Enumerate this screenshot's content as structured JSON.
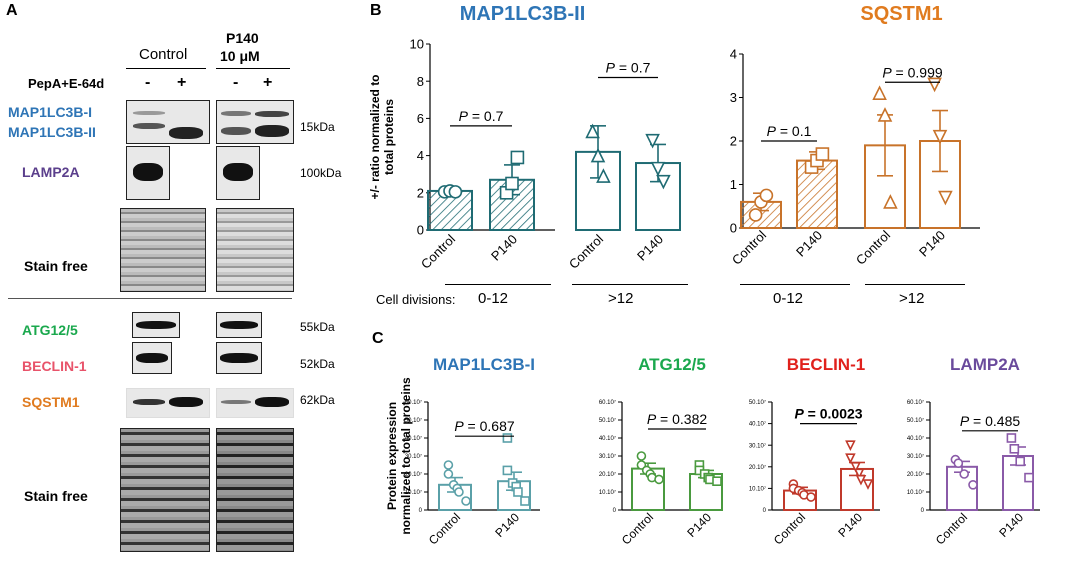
{
  "panel_a": {
    "letter": "A",
    "group_control": "Control",
    "group_p140_line1": "P140",
    "group_p140_line2": "10 μM",
    "treatment_label": "PepA+E-64d",
    "signs": [
      "-",
      "+",
      "-",
      "+"
    ],
    "rows": [
      {
        "protein": "MAP1LC3B-I",
        "color": "#2e75b6"
      },
      {
        "protein": "MAP1LC3B-II",
        "color": "#2e75b6"
      },
      {
        "protein": "LAMP2A",
        "color": "#5b3f8c"
      },
      {
        "protein": "Stain free",
        "color": "#000000"
      },
      {
        "protein": "ATG12/5",
        "color": "#1aa84d"
      },
      {
        "protein": "BECLIN-1",
        "color": "#e8536a"
      },
      {
        "protein": "SQSTM1",
        "color": "#e07b1f"
      },
      {
        "protein": "Stain free",
        "color": "#000000"
      }
    ],
    "kda": [
      "15kDa",
      "100kDa",
      "55kDa",
      "52kDa",
      "62kDa"
    ]
  },
  "panel_b_letter": "B",
  "panel_c_letter": "C",
  "cell_divisions_label": "Cell divisions:",
  "cell_div_groups": [
    "0-12",
    ">12",
    "0-12",
    ">12"
  ],
  "chart_data": [
    {
      "type": "bar",
      "panel": "B",
      "title": "MAP1LC3B-II",
      "color": "#2e75b6",
      "bar_color": "#1f6b73",
      "ylabel": "+/-  ratio normalized to total proteins",
      "ylim": [
        0,
        10
      ],
      "yticks": [
        "0",
        "2",
        "4",
        "6",
        "8",
        "10"
      ],
      "categories": [
        "Control",
        "P140",
        "Control",
        "P140"
      ],
      "values": [
        2.1,
        2.7,
        4.2,
        3.6
      ],
      "errors": [
        0.05,
        0.8,
        1.4,
        1.0
      ],
      "hatched": [
        true,
        true,
        false,
        false
      ],
      "points": [
        [
          2.05,
          2.1,
          2.05
        ],
        [
          2.0,
          2.5,
          3.9
        ],
        [
          5.3,
          4.0,
          2.9
        ],
        [
          4.8,
          3.3,
          2.6
        ]
      ],
      "markers": [
        "circle",
        "square",
        "triangle-up",
        "triangle-down"
      ],
      "pvalues": [
        {
          "label": "P = 0.7",
          "from": 0,
          "to": 1,
          "y": 5.6
        },
        {
          "label": "P = 0.7",
          "from": 2,
          "to": 3,
          "y": 8.2
        }
      ]
    },
    {
      "type": "bar",
      "panel": "B",
      "title": "SQSTM1",
      "color": "#e07b1f",
      "bar_color": "#c8732a",
      "ylabel": "",
      "ylim": [
        0,
        4
      ],
      "yticks": [
        "0",
        "1",
        "2",
        "3",
        "4"
      ],
      "categories": [
        "Control",
        "P140",
        "Control",
        "P140"
      ],
      "values": [
        0.6,
        1.55,
        1.9,
        2.0
      ],
      "errors": [
        0.2,
        0.2,
        0.7,
        0.7
      ],
      "hatched": [
        true,
        true,
        false,
        false
      ],
      "points": [
        [
          0.3,
          0.6,
          0.75
        ],
        [
          1.4,
          1.55,
          1.7
        ],
        [
          3.1,
          2.6,
          0.6
        ],
        [
          3.3,
          2.1,
          0.7
        ]
      ],
      "markers": [
        "circle",
        "square",
        "triangle-up",
        "triangle-down"
      ],
      "pvalues": [
        {
          "label": "P = 0.1",
          "from": 0,
          "to": 1,
          "y": 2.0
        },
        {
          "label": "P = 0.999",
          "from": 2,
          "to": 3,
          "y": 3.35
        }
      ]
    },
    {
      "type": "bar",
      "panel": "C",
      "title": "MAP1LC3B-I",
      "color": "#2e75b6",
      "bar_color": "#5aa0a8",
      "ylabel": "Protein  expression normalized to total proteins",
      "ylim": [
        0,
        60
      ],
      "yticks": [
        "0",
        "10.10⁷",
        "20.10⁷",
        "30.10⁷",
        "40.10⁷",
        "50.10⁷",
        "60.10⁷"
      ],
      "categories": [
        "Control",
        "P140"
      ],
      "values": [
        14,
        16
      ],
      "errors": [
        4,
        5
      ],
      "points": [
        [
          25,
          20,
          14,
          12,
          10,
          5
        ],
        [
          40,
          22,
          15,
          13,
          10,
          5
        ]
      ],
      "markers": [
        "circle",
        "square"
      ],
      "pvalues": [
        {
          "label": "P = 0.687",
          "from": 0,
          "to": 1,
          "y": 41,
          "bold": false
        }
      ]
    },
    {
      "type": "bar",
      "panel": "C",
      "title": "ATG12/5",
      "color": "#1aa84d",
      "bar_color": "#4a9a3f",
      "ylabel": "",
      "ylim": [
        0,
        60
      ],
      "yticks": [
        "0",
        "10.10⁷",
        "20.10⁷",
        "30.10⁷",
        "40.10⁷",
        "50.10⁷",
        "60.10⁷"
      ],
      "categories": [
        "Control",
        "P140"
      ],
      "values": [
        23,
        20
      ],
      "errors": [
        3,
        2
      ],
      "points": [
        [
          30,
          25,
          22,
          20,
          18,
          17
        ],
        [
          25,
          22,
          20,
          18,
          17,
          16
        ]
      ],
      "markers": [
        "circle",
        "square"
      ],
      "pvalues": [
        {
          "label": "P = 0.382",
          "from": 0,
          "to": 1,
          "y": 45,
          "bold": false
        }
      ]
    },
    {
      "type": "bar",
      "panel": "C",
      "title": "BECLIN-1",
      "color": "#e0211c",
      "bar_color": "#c0392b",
      "ylabel": "",
      "ylim": [
        0,
        50
      ],
      "yticks": [
        "0",
        "10.10⁷",
        "20.10⁷",
        "30.10⁷",
        "40.10⁷",
        "50.10⁷"
      ],
      "categories": [
        "Control",
        "P140"
      ],
      "values": [
        9,
        19
      ],
      "errors": [
        1.5,
        3
      ],
      "points": [
        [
          12,
          10,
          9,
          8,
          7,
          6
        ],
        [
          30,
          24,
          20,
          17,
          14,
          12
        ]
      ],
      "markers": [
        "circle",
        "triangle-down"
      ],
      "pvalues": [
        {
          "label": "P = 0.0023",
          "from": 0,
          "to": 1,
          "y": 40,
          "bold": true
        }
      ]
    },
    {
      "type": "bar",
      "panel": "C",
      "title": "LAMP2A",
      "color": "#6a4a9c",
      "bar_color": "#8a5aa8",
      "ylabel": "",
      "ylim": [
        0,
        60
      ],
      "yticks": [
        "0",
        "10.10⁷",
        "20.10⁷",
        "30.10⁷",
        "40.10⁷",
        "50.10⁷",
        "60.10⁷"
      ],
      "categories": [
        "Control",
        "P140"
      ],
      "values": [
        24,
        30
      ],
      "errors": [
        3,
        5
      ],
      "points": [
        [
          28,
          26,
          20,
          14
        ],
        [
          40,
          34,
          27,
          18
        ]
      ],
      "markers": [
        "circle",
        "square"
      ],
      "pvalues": [
        {
          "label": "P = 0.485",
          "from": 0,
          "to": 1,
          "y": 44,
          "bold": false
        }
      ]
    }
  ]
}
